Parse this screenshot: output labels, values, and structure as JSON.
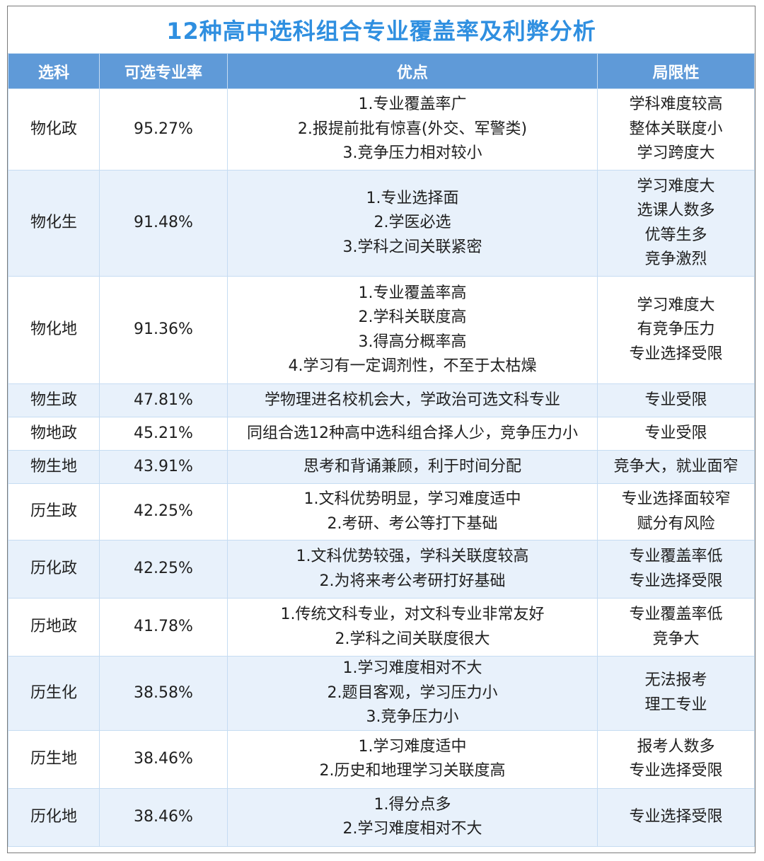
{
  "title": "12种高中选科组合专业覆盖率及利弊分析",
  "headers": [
    "选科",
    "可选专业率",
    "优点",
    "局限性"
  ],
  "rows": [
    {
      "subject": "物化政",
      "rate": "95.27%",
      "pros": [
        "1.专业覆盖率广",
        "2.报提前批有惊喜(外交、军警类)",
        "3.竞争压力相对较小"
      ],
      "cons": [
        "学科难度较高",
        "整体关联度小",
        "学习跨度大"
      ]
    },
    {
      "subject": "物化生",
      "rate": "91.48%",
      "pros": [
        "1.专业选择面",
        "2.学医必选",
        "3.学科之间关联紧密"
      ],
      "cons": [
        "学习难度大",
        "选课人数多",
        "优等生多",
        "竞争激烈"
      ]
    },
    {
      "subject": "物化地",
      "rate": "91.36%",
      "pros": [
        "1.专业覆盖率高",
        "2.学科关联度高",
        "3.得高分概率高",
        "4.学习有一定调剂性，不至于太枯燥"
      ],
      "cons": [
        "学习难度大",
        "有竞争压力",
        "专业选择受限"
      ]
    },
    {
      "subject": "物生政",
      "rate": "47.81%",
      "pros": [
        "学物理进名校机会大，学政治可选文科专业"
      ],
      "cons": [
        "专业受限"
      ]
    },
    {
      "subject": "物地政",
      "rate": "45.21%",
      "pros": [
        "同组合选12种高中选科组合择人少，竞争压力小"
      ],
      "cons": [
        "专业受限"
      ]
    },
    {
      "subject": "物生地",
      "rate": "43.91%",
      "pros": [
        "思考和背诵兼顾，利于时间分配"
      ],
      "cons": [
        "竞争大，就业面窄"
      ]
    },
    {
      "subject": "历生政",
      "rate": "42.25%",
      "pros": [
        "1.文科优势明显，学习难度适中",
        "2.考研、考公等打下基础"
      ],
      "cons": [
        "专业选择面较窄",
        "赋分有风险"
      ]
    },
    {
      "subject": "历化政",
      "rate": "42.25%",
      "pros": [
        "1.文科优势较强，学科关联度较高",
        "2.为将来考公考研打好基础"
      ],
      "cons": [
        "专业覆盖率低",
        "专业选择受限"
      ]
    },
    {
      "subject": "历地政",
      "rate": "41.78%",
      "pros": [
        "1.传统文科专业，对文科专业非常友好",
        "2.学科之间关联度很大"
      ],
      "cons": [
        "专业覆盖率低",
        "竞争大"
      ]
    },
    {
      "subject": "历生化",
      "rate": "38.58%",
      "pros": [
        "1.学习难度相对不大",
        "2.题目客观，学习压力小",
        "3.竞争压力小"
      ],
      "cons": [
        "无法报考",
        "理工专业"
      ]
    },
    {
      "subject": "历生地",
      "rate": "38.46%",
      "pros": [
        "1.学习难度适中",
        "2.历史和地理学习关联度高"
      ],
      "cons": [
        "报考人数多",
        "专业选择受限"
      ]
    },
    {
      "subject": "历化地",
      "rate": "38.46%",
      "pros": [
        "1.得分点多",
        "2.学习难度相对不大"
      ],
      "cons": [
        "专业选择受限"
      ]
    }
  ]
}
